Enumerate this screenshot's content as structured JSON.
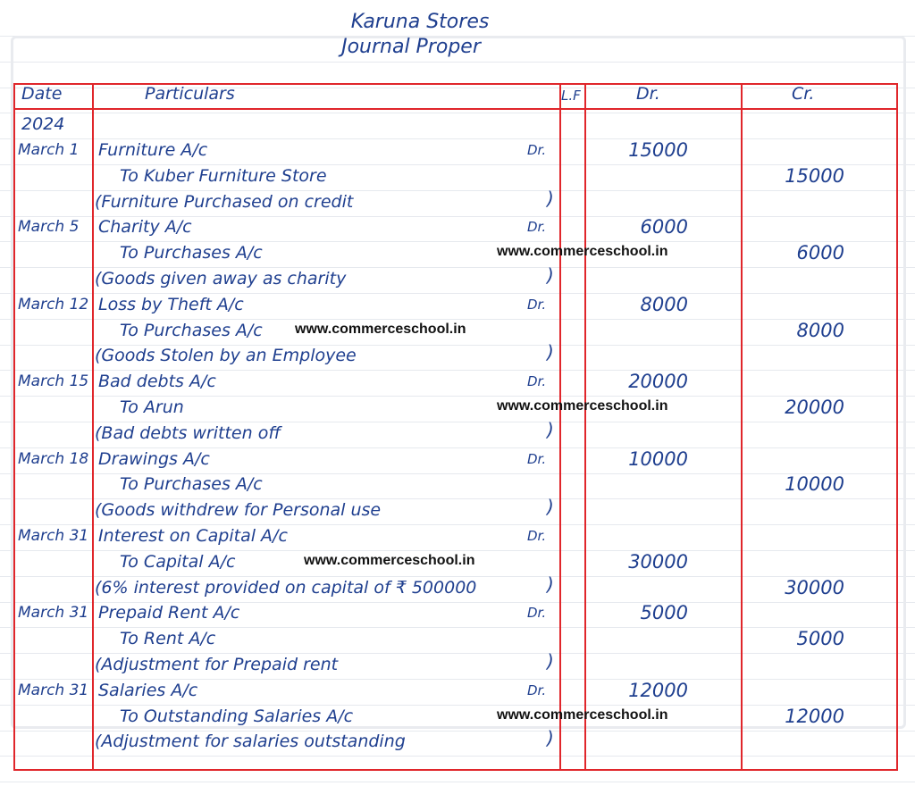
{
  "header": {
    "title": "Karuna Stores",
    "subtitle": "Journal Proper"
  },
  "columns": {
    "date": "Date",
    "particulars": "Particulars",
    "lf": "L.F",
    "dr": "Dr.",
    "cr": "Cr."
  },
  "year": "2024",
  "watermark": "www.commerceschool.in",
  "colors": {
    "ink": "#1f3f8f",
    "table_lines": "#e0262b"
  },
  "entries": [
    {
      "date": "March 1",
      "debit": "Furniture A/c",
      "dr_mark": "Dr.",
      "dr": "15000",
      "credit": "To Kuber Furniture Store",
      "cr": "15000",
      "narration": "(Furniture Purchased on credit"
    },
    {
      "date": "March 5",
      "debit": "Charity A/c",
      "dr_mark": "Dr.",
      "dr": "6000",
      "credit": "To Purchases A/c",
      "cr": "6000",
      "narration": "(Goods given away as charity"
    },
    {
      "date": "March 12",
      "debit": "Loss by Theft A/c",
      "dr_mark": "Dr.",
      "dr": "8000",
      "credit": "To Purchases A/c",
      "cr": "8000",
      "narration": "(Goods Stolen by an Employee"
    },
    {
      "date": "March 15",
      "debit": "Bad debts A/c",
      "dr_mark": "Dr.",
      "dr": "20000",
      "credit": "To Arun",
      "cr": "20000",
      "narration": "(Bad debts written off"
    },
    {
      "date": "March 18",
      "debit": "Drawings A/c",
      "dr_mark": "Dr.",
      "dr": "10000",
      "credit": "To Purchases A/c",
      "cr": "10000",
      "narration": "(Goods withdrew for Personal use"
    },
    {
      "date": "March 31",
      "debit": "Interest on Capital A/c",
      "dr_mark": "Dr.",
      "dr": "30000",
      "credit": "To Capital A/c",
      "cr": "30000",
      "narration": "(6% interest provided on capital of ₹ 500000"
    },
    {
      "date": "March 31",
      "debit": "Prepaid Rent A/c",
      "dr_mark": "Dr.",
      "dr": "5000",
      "credit": "To Rent A/c",
      "cr": "5000",
      "narration": "(Adjustment for Prepaid rent"
    },
    {
      "date": "March 31",
      "debit": "Salaries A/c",
      "dr_mark": "Dr.",
      "dr": "12000",
      "credit": "To Outstanding Salaries A/c",
      "cr": "12000",
      "narration": "(Adjustment for salaries outstanding"
    }
  ]
}
